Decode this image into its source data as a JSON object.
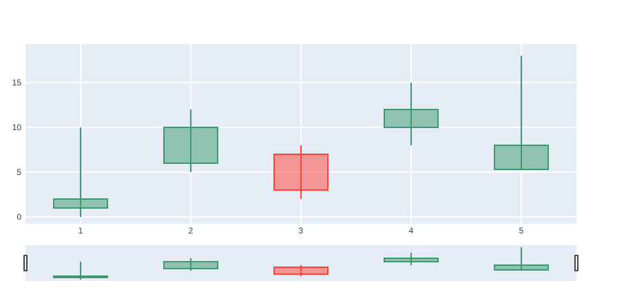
{
  "chart_data": {
    "type": "candlestick",
    "x": [
      1,
      2,
      3,
      4,
      5
    ],
    "open": [
      1,
      6,
      7,
      10,
      5.3
    ],
    "high": [
      10,
      12,
      8,
      15,
      18
    ],
    "low": [
      0,
      5,
      2,
      8,
      5.3
    ],
    "close": [
      2,
      10,
      3,
      12,
      8
    ],
    "title": "",
    "xlabel": "",
    "ylabel": "",
    "x_tick_labels": [
      "1",
      "2",
      "3",
      "4",
      "5"
    ],
    "y_tick_labels": [
      "0",
      "5",
      "10",
      "15"
    ],
    "y_tick_values": [
      0,
      5,
      10,
      15
    ],
    "x_range": [
      0.5,
      5.5
    ],
    "y_range": [
      -0.8,
      19.3
    ],
    "grid": "on",
    "legend_position": "none",
    "rangeslider_visible": true,
    "colors": {
      "increasing_line": "#3D9970",
      "increasing_fill": "rgba(61,153,112,0.5)",
      "decreasing_line": "#FF4136",
      "decreasing_fill": "rgba(255,65,54,0.5)",
      "plot_background": "#E5ECF6",
      "grid_color": "#FFFFFF",
      "tick_label_color": "#2A3F5F",
      "page_background": "#FFFFFF",
      "handle_fill": "#FFFFFF",
      "handle_border": "#444444"
    }
  }
}
